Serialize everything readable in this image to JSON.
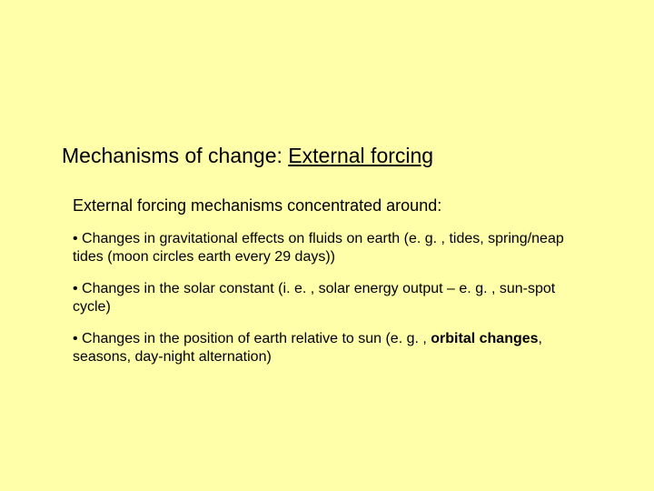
{
  "background_color": "#ffffaa",
  "text_color": "#000000",
  "title": {
    "prefix": "Mechanisms of change: ",
    "emphasis": "External forcing",
    "fontsize": 23
  },
  "subheading": {
    "text": "External forcing mechanisms concentrated around:",
    "fontsize": 18
  },
  "bullets": {
    "fontsize": 16,
    "items": [
      {
        "leader": "• Changes in gravitational effects on fluids on earth (e. g. , tides, spring/neap tides (moon circles earth every 29 days))",
        "bold_segments": []
      },
      {
        "leader": "• Changes in the solar constant (i. e. , solar energy output – e. g. , sun-spot cycle)",
        "bold_segments": []
      },
      {
        "leader_a": "• Changes in the position of earth relative to sun (e. g. , ",
        "bold": "orbital changes",
        "leader_b": ", seasons, day-night alternation)"
      }
    ]
  }
}
